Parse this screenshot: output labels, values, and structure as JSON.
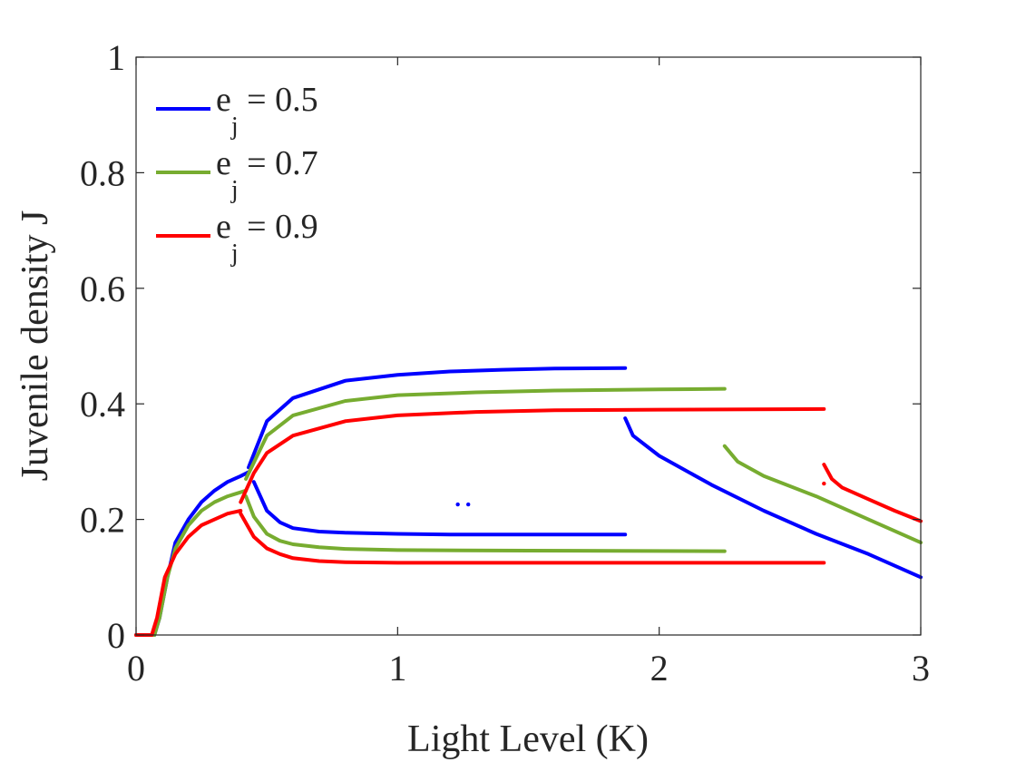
{
  "chart_data": {
    "type": "scatter",
    "title": "",
    "xlabel": "Light Level (K)",
    "ylabel": "Juvenile density J",
    "xlim": [
      0,
      3
    ],
    "ylim": [
      0,
      1
    ],
    "xticks": [
      0,
      1,
      2,
      3
    ],
    "yticks": [
      0,
      0.2,
      0.4,
      0.6,
      0.8,
      1
    ],
    "xtick_labels": [
      "0",
      "1",
      "2",
      "3"
    ],
    "ytick_labels": [
      "0",
      "0.2",
      "0.4",
      "0.6",
      "0.8",
      "1"
    ],
    "grid": false,
    "legend_position": "top-left",
    "series": [
      {
        "name": "e_j = 0.5",
        "legend_main": "e",
        "legend_sub": "j",
        "legend_value": " = 0.5",
        "color": "#0000ff",
        "branches": [
          {
            "x": [
              0,
              0.07,
              0.09,
              0.12,
              0.15,
              0.2,
              0.25,
              0.3,
              0.35,
              0.4,
              0.43
            ],
            "y": [
              0,
              0,
              0.03,
              0.1,
              0.16,
              0.2,
              0.23,
              0.25,
              0.265,
              0.275,
              0.282
            ]
          },
          {
            "x": [
              0.43,
              0.5,
              0.6,
              0.8,
              1.0,
              1.2,
              1.4,
              1.6,
              1.87
            ],
            "y": [
              0.29,
              0.37,
              0.41,
              0.44,
              0.45,
              0.456,
              0.459,
              0.461,
              0.462
            ]
          },
          {
            "x": [
              0.45,
              0.5,
              0.55,
              0.6,
              0.7,
              0.8,
              1.0,
              1.2,
              1.5,
              1.87
            ],
            "y": [
              0.265,
              0.215,
              0.195,
              0.185,
              0.179,
              0.177,
              0.175,
              0.174,
              0.174,
              0.174
            ]
          },
          {
            "x": [
              1.87,
              1.9,
              2.0,
              2.2,
              2.4,
              2.6,
              2.8,
              3.0
            ],
            "y": [
              0.375,
              0.345,
              0.31,
              0.26,
              0.215,
              0.175,
              0.14,
              0.1
            ]
          },
          {
            "x": [
              1.23,
              1.27
            ],
            "y": [
              0.226,
              0.226
            ],
            "points_only": true
          }
        ]
      },
      {
        "name": "e_j = 0.7",
        "legend_main": "e",
        "legend_sub": "j",
        "legend_value": " = 0.7",
        "color": "#77ac30",
        "branches": [
          {
            "x": [
              0,
              0.07,
              0.09,
              0.12,
              0.15,
              0.2,
              0.25,
              0.3,
              0.35,
              0.42
            ],
            "y": [
              0,
              0,
              0.03,
              0.1,
              0.15,
              0.19,
              0.215,
              0.23,
              0.24,
              0.25
            ]
          },
          {
            "x": [
              0.42,
              0.5,
              0.6,
              0.8,
              1.0,
              1.3,
              1.6,
              2.0,
              2.25
            ],
            "y": [
              0.27,
              0.345,
              0.38,
              0.405,
              0.415,
              0.42,
              0.423,
              0.425,
              0.426
            ]
          },
          {
            "x": [
              0.42,
              0.45,
              0.5,
              0.55,
              0.6,
              0.7,
              0.8,
              1.0,
              1.5,
              2.25
            ],
            "y": [
              0.24,
              0.205,
              0.175,
              0.163,
              0.157,
              0.152,
              0.149,
              0.147,
              0.146,
              0.145
            ]
          },
          {
            "x": [
              2.25,
              2.3,
              2.4,
              2.6,
              2.8,
              3.0
            ],
            "y": [
              0.327,
              0.3,
              0.275,
              0.24,
              0.2,
              0.16
            ]
          }
        ]
      },
      {
        "name": "e_j = 0.9",
        "legend_main": "e",
        "legend_sub": "j",
        "legend_value": " = 0.9",
        "color": "#ff0000",
        "branches": [
          {
            "x": [
              0,
              0.06,
              0.08,
              0.11,
              0.15,
              0.2,
              0.25,
              0.3,
              0.35,
              0.4
            ],
            "y": [
              0,
              0,
              0.03,
              0.1,
              0.14,
              0.17,
              0.19,
              0.2,
              0.21,
              0.215
            ]
          },
          {
            "x": [
              0.4,
              0.45,
              0.5,
              0.6,
              0.8,
              1.0,
              1.3,
              1.6,
              2.0,
              2.63
            ],
            "y": [
              0.23,
              0.28,
              0.315,
              0.345,
              0.37,
              0.38,
              0.386,
              0.389,
              0.39,
              0.391
            ]
          },
          {
            "x": [
              0.4,
              0.45,
              0.5,
              0.55,
              0.6,
              0.7,
              0.8,
              1.0,
              1.5,
              2.63
            ],
            "y": [
              0.21,
              0.17,
              0.15,
              0.14,
              0.133,
              0.128,
              0.126,
              0.125,
              0.125,
              0.125
            ]
          },
          {
            "x": [
              2.63,
              2.66,
              2.7,
              2.8,
              2.9,
              3.0
            ],
            "y": [
              0.295,
              0.27,
              0.255,
              0.235,
              0.215,
              0.197
            ]
          },
          {
            "x": [
              2.63
            ],
            "y": [
              0.262
            ],
            "points_only": true
          }
        ]
      }
    ]
  }
}
